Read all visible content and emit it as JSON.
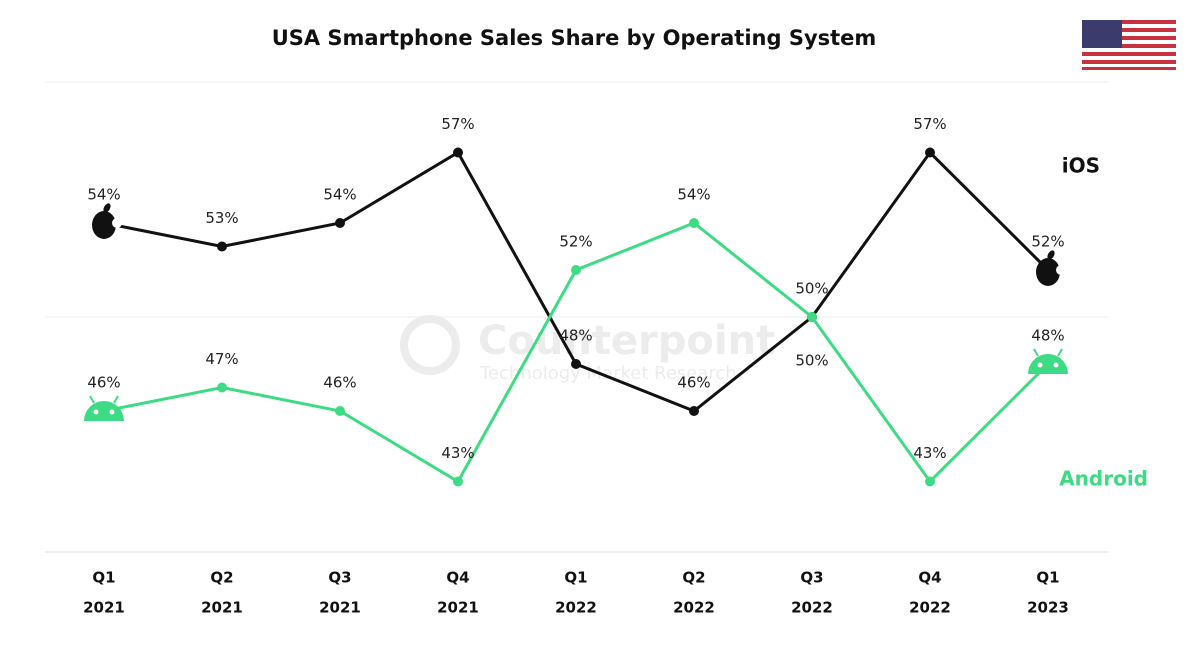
{
  "chart_data": {
    "type": "line",
    "title": "USA Smartphone Sales Share by Operating System",
    "watermark": [
      "Counterpoint",
      "Technology Market Research"
    ],
    "categories": [
      [
        "Q1",
        "2021"
      ],
      [
        "Q2",
        "2021"
      ],
      [
        "Q3",
        "2021"
      ],
      [
        "Q4",
        "2021"
      ],
      [
        "Q1",
        "2022"
      ],
      [
        "Q2",
        "2022"
      ],
      [
        "Q3",
        "2022"
      ],
      [
        "Q4",
        "2022"
      ],
      [
        "Q1",
        "2023"
      ]
    ],
    "series": [
      {
        "name": "iOS",
        "color": "#111111",
        "values": [
          54,
          53,
          54,
          57,
          48,
          46,
          50,
          57,
          52
        ],
        "value_labels": [
          "54%",
          "53%",
          "54%",
          "57%",
          "48%",
          "46%",
          "50%",
          "57%",
          "52%"
        ]
      },
      {
        "name": "Android",
        "color": "#3ddc84",
        "values": [
          46,
          47,
          46,
          43,
          52,
          54,
          50,
          43,
          48
        ],
        "value_labels": [
          "46%",
          "47%",
          "46%",
          "43%",
          "52%",
          "54%",
          "50%",
          "43%",
          "48%"
        ]
      }
    ],
    "ylim": [
      40,
      60
    ]
  }
}
